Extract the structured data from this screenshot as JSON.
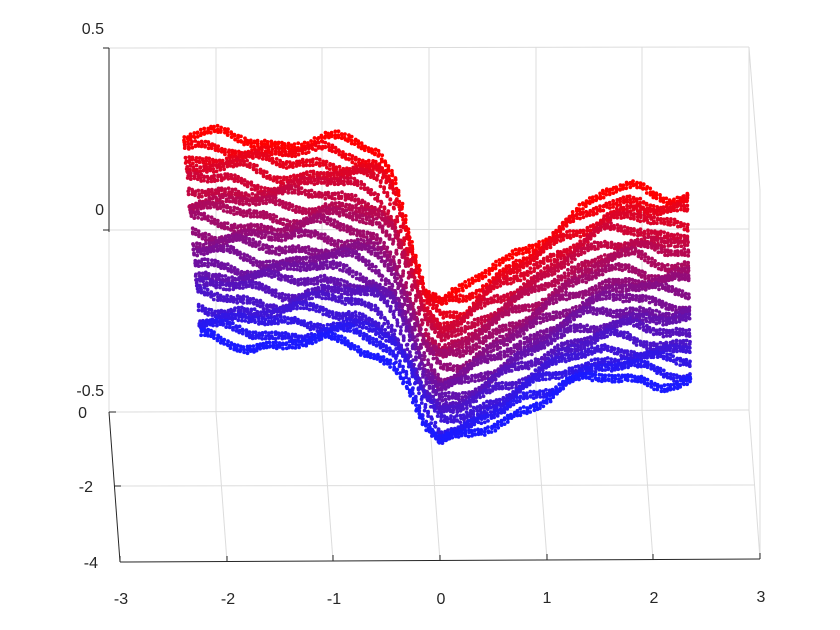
{
  "chart_data": {
    "type": "scatter",
    "title": "",
    "xlabel": "",
    "ylabel": "",
    "zlabel": "",
    "grid": true,
    "x_ticks": [
      "-3",
      "-2",
      "-1",
      "0",
      "1",
      "2",
      "3"
    ],
    "y_ticks": [
      "-4",
      "-2",
      "0"
    ],
    "z_ticks": [
      "-0.5",
      "0",
      "0.5"
    ],
    "xlim": [
      -3,
      3
    ],
    "ylim": [
      -4,
      0
    ],
    "zlim": [
      -0.5,
      0.5
    ],
    "color_gradient": {
      "low": "#1a1aff",
      "high": "#ff0000",
      "mapped_to": "z"
    },
    "series": [
      {
        "y": -3.4,
        "profile_x": [
          -2.4,
          -2.0,
          -1.5,
          -1.1,
          -0.8,
          -0.6,
          -0.45,
          -0.3,
          -0.15,
          0.0,
          0.2,
          0.5,
          0.8,
          1.2,
          1.55,
          1.8,
          2.1,
          2.4
        ],
        "profile_z": [
          0.28,
          0.29,
          0.265,
          0.275,
          0.265,
          0.245,
          0.18,
          0.02,
          -0.13,
          -0.165,
          -0.145,
          -0.07,
          -0.02,
          0.06,
          0.13,
          0.145,
          0.125,
          0.13
        ]
      },
      {
        "y": 0.0,
        "profile_x": [
          -2.4,
          -2.0,
          -1.5,
          -1.1,
          -0.8,
          -0.6,
          -0.45,
          -0.3,
          -0.15,
          0.0,
          0.2,
          0.5,
          0.8,
          1.2,
          1.55,
          1.8,
          2.1,
          2.4
        ],
        "profile_z": [
          -0.28,
          -0.3,
          -0.31,
          -0.3,
          -0.31,
          -0.33,
          -0.36,
          -0.42,
          -0.52,
          -0.58,
          -0.57,
          -0.53,
          -0.48,
          -0.42,
          -0.4,
          -0.4,
          -0.41,
          -0.41
        ]
      }
    ]
  }
}
